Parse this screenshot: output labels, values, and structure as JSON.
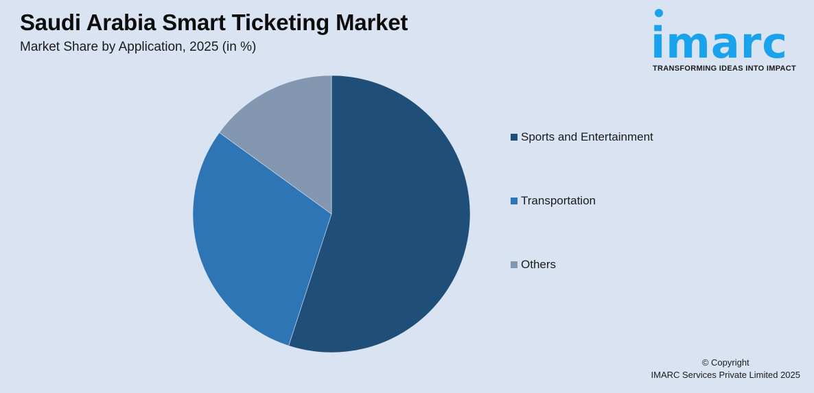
{
  "header": {
    "title": "Saudi Arabia Smart Ticketing Market",
    "subtitle": "Market Share by Application, 2025 (in %)"
  },
  "logo": {
    "wordmark": "imarc",
    "tagline": "TRANSFORMING IDEAS INTO IMPACT",
    "color": "#1aa3ec"
  },
  "legend": {
    "items": [
      {
        "label": "Sports and Entertainment",
        "color": "#1f4e79"
      },
      {
        "label": "Transportation",
        "color": "#2e75b6"
      },
      {
        "label": "Others",
        "color": "#8497b0"
      }
    ]
  },
  "footer": {
    "copyright_line1": "© Copyright",
    "copyright_line2": "IMARC Services Private Limited 2025"
  },
  "chart_data": {
    "type": "pie",
    "title": "Saudi Arabia Smart Ticketing Market",
    "subtitle": "Market Share by Application, 2025 (in %)",
    "categories": [
      "Sports and Entertainment",
      "Transportation",
      "Others"
    ],
    "values": [
      55,
      30,
      15
    ],
    "colors": [
      "#1f4e79",
      "#2e75b6",
      "#8497b0"
    ],
    "start_angle": "12 o'clock, clockwise",
    "legend_position": "right",
    "data_labels": false
  }
}
